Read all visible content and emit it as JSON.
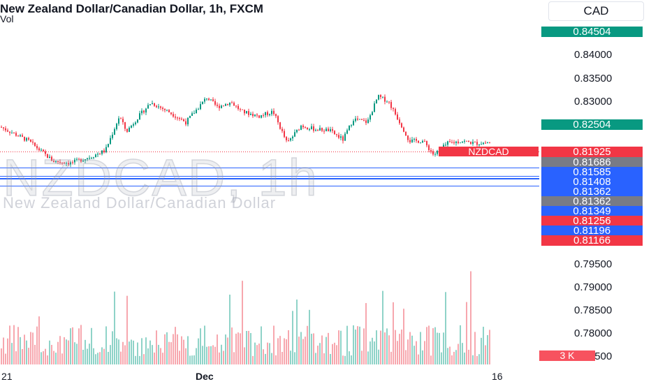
{
  "header": {
    "title": "New Zealand Dollar/Canadian Dollar, 1h, FXCM",
    "vol_label": "Vol"
  },
  "watermark": {
    "symbol": "NZDCAD, 1h",
    "description": "New Zealand Dollar/Canadian Dollar"
  },
  "currency_button": {
    "label": "CAD"
  },
  "price_axis": {
    "ticks": [
      "0.84000",
      "0.83500",
      "0.83000",
      "0.79500",
      "0.79000",
      "0.78500",
      "0.78000",
      "0.77500"
    ],
    "tags": [
      {
        "label": "0.84504",
        "color": "#089981"
      },
      {
        "label": "0.82504",
        "color": "#089981"
      },
      {
        "label": "0.81925",
        "color": "#f23645"
      },
      {
        "label": "0.81686",
        "color": "#787b86"
      },
      {
        "label": "0.81585",
        "color": "#2962ff"
      },
      {
        "label": "0.81408",
        "color": "#2962ff"
      },
      {
        "label": "0.81362",
        "color": "#2962ff"
      },
      {
        "label": "0.81362",
        "color": "#787b86"
      },
      {
        "label": "0.81349",
        "color": "#2962ff"
      },
      {
        "label": "0.81256",
        "color": "#f23645"
      },
      {
        "label": "0.81196",
        "color": "#2962ff"
      },
      {
        "label": "0.81166",
        "color": "#f23645"
      }
    ]
  },
  "symbol_tag": "NZDCAD",
  "volume_tag": "3 K",
  "time_axis": {
    "labels": [
      "21",
      "Dec",
      "16"
    ]
  },
  "colors": {
    "up": "#089981",
    "down": "#f23645",
    "vol_up": "#8fd3c8",
    "vol_down": "#f7a7ae",
    "level_line": "#2962ff"
  },
  "chart_data": {
    "type": "candlestick",
    "instrument": "New Zealand Dollar/Canadian Dollar, 1h, FXCM",
    "last_price": 0.81925,
    "price_range": [
      0.775,
      0.846
    ],
    "horizontal_levels": [
      0.81585,
      0.81408,
      0.81362,
      0.81349,
      0.81196
    ],
    "approx_path": [
      [
        0,
        0.8245
      ],
      [
        40,
        0.8215
      ],
      [
        75,
        0.8172
      ],
      [
        100,
        0.8168
      ],
      [
        130,
        0.8182
      ],
      [
        150,
        0.8195
      ],
      [
        170,
        0.8268
      ],
      [
        180,
        0.8235
      ],
      [
        200,
        0.8272
      ],
      [
        215,
        0.8297
      ],
      [
        240,
        0.8278
      ],
      [
        265,
        0.8255
      ],
      [
        295,
        0.8308
      ],
      [
        310,
        0.8288
      ],
      [
        330,
        0.8298
      ],
      [
        345,
        0.8278
      ],
      [
        370,
        0.8268
      ],
      [
        390,
        0.8278
      ],
      [
        410,
        0.821
      ],
      [
        430,
        0.8248
      ],
      [
        450,
        0.824
      ],
      [
        470,
        0.8238
      ],
      [
        490,
        0.8218
      ],
      [
        505,
        0.8262
      ],
      [
        525,
        0.8255
      ],
      [
        540,
        0.831
      ],
      [
        555,
        0.83
      ],
      [
        575,
        0.8245
      ],
      [
        585,
        0.8215
      ],
      [
        605,
        0.8215
      ],
      [
        620,
        0.8185
      ],
      [
        640,
        0.821
      ],
      [
        660,
        0.8215
      ],
      [
        680,
        0.821
      ],
      [
        700,
        0.8212
      ]
    ]
  }
}
